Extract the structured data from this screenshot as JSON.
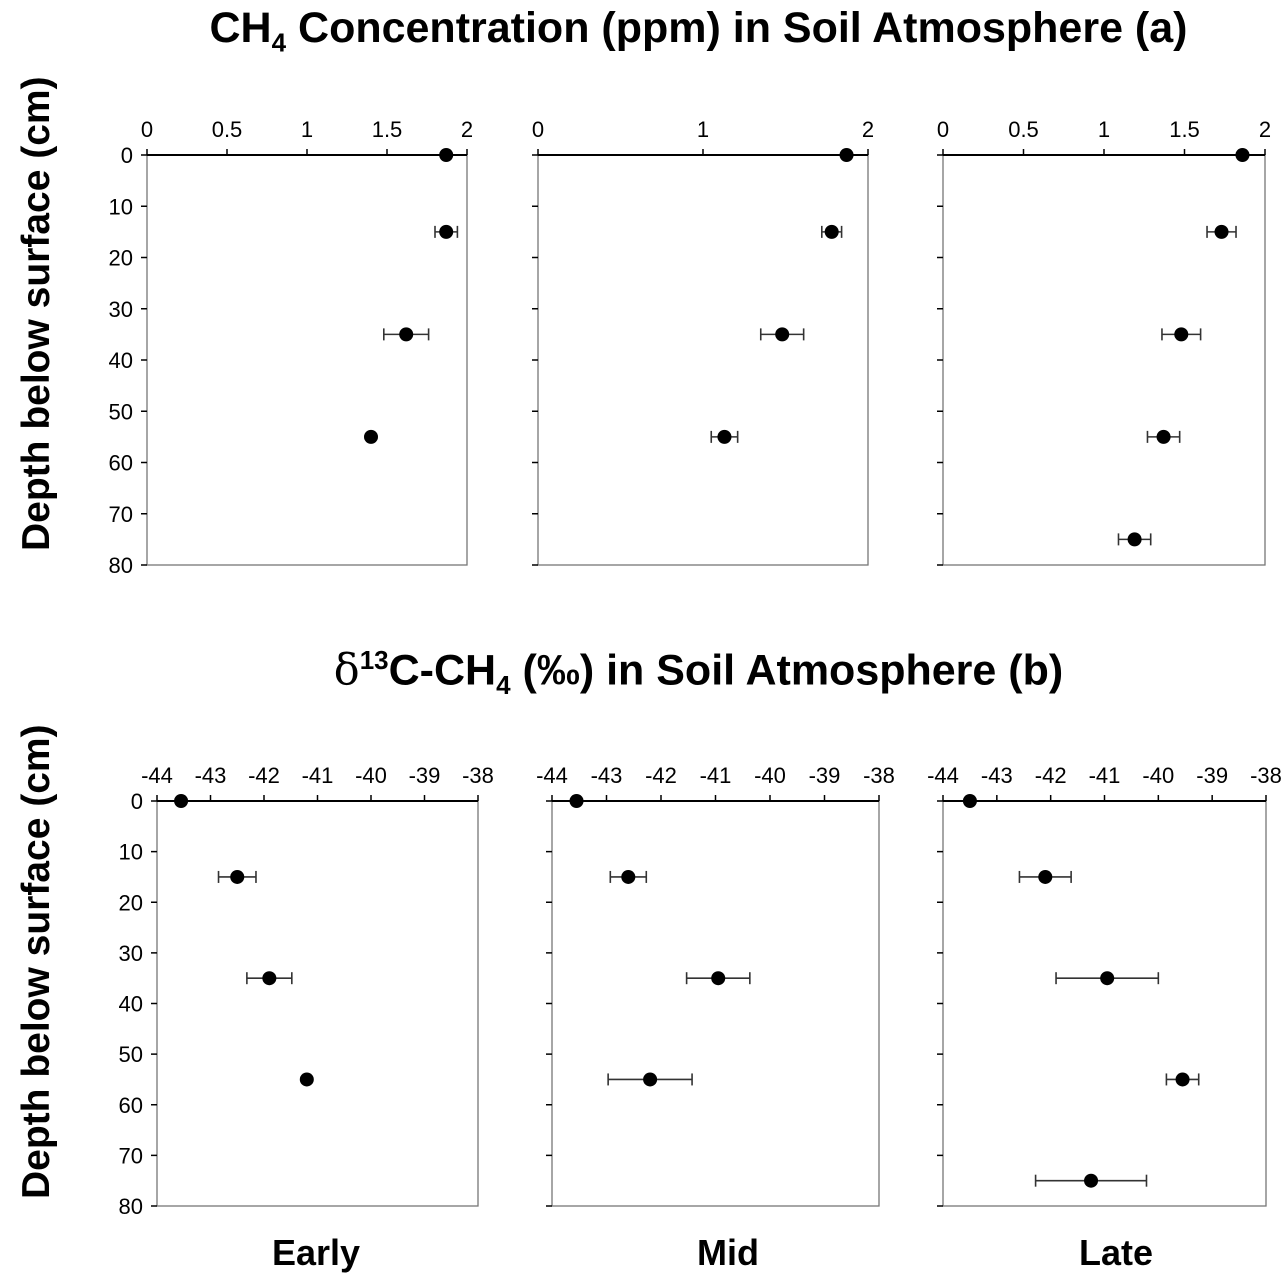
{
  "titles": {
    "a_main": "CH",
    "a_sub": "4",
    "a_rest": " Concentration (ppm) in Soil Atmosphere (a)",
    "b_delta": "δ",
    "b_sup": "13",
    "b_rest": "C-CH",
    "b_sub": "4",
    "b_tail": " (‰) in Soil Atmosphere (b)"
  },
  "ylabel": "Depth below surface (cm)",
  "periods": [
    "Early",
    "Mid",
    "Late"
  ],
  "chart_data": [
    {
      "type": "scatter",
      "panel": "a-early",
      "x_axis_position": "top",
      "xlim": [
        0,
        2
      ],
      "xticks": [
        "0",
        "0.5",
        "1",
        "1.5",
        "2"
      ],
      "xtick_values": [
        0,
        0.5,
        1,
        1.5,
        2
      ],
      "ylim": [
        0,
        80
      ],
      "yticks": [
        "0",
        "10",
        "20",
        "30",
        "40",
        "50",
        "60",
        "70",
        "80"
      ],
      "y_inverted": true,
      "points": [
        {
          "depth": 0,
          "value": 1.87,
          "err": 0
        },
        {
          "depth": 15,
          "value": 1.87,
          "err": 0.07
        },
        {
          "depth": 35,
          "value": 1.62,
          "err": 0.14
        },
        {
          "depth": 55,
          "value": 1.4,
          "err": 0
        }
      ]
    },
    {
      "type": "scatter",
      "panel": "a-mid",
      "x_axis_position": "top",
      "xlim": [
        0,
        2
      ],
      "xticks": [
        "0",
        "1",
        "2"
      ],
      "xtick_values": [
        0,
        1,
        2
      ],
      "ylim": [
        0,
        80
      ],
      "y_inverted": true,
      "points": [
        {
          "depth": 0,
          "value": 1.87,
          "err": 0
        },
        {
          "depth": 15,
          "value": 1.78,
          "err": 0.06
        },
        {
          "depth": 35,
          "value": 1.48,
          "err": 0.13
        },
        {
          "depth": 55,
          "value": 1.13,
          "err": 0.08
        }
      ]
    },
    {
      "type": "scatter",
      "panel": "a-late",
      "x_axis_position": "top",
      "xlim": [
        0,
        2
      ],
      "xticks": [
        "0",
        "0.5",
        "1",
        "1.5",
        "2"
      ],
      "xtick_values": [
        0,
        0.5,
        1,
        1.5,
        2
      ],
      "ylim": [
        0,
        80
      ],
      "y_inverted": true,
      "points": [
        {
          "depth": 0,
          "value": 1.86,
          "err": 0
        },
        {
          "depth": 15,
          "value": 1.73,
          "err": 0.09
        },
        {
          "depth": 35,
          "value": 1.48,
          "err": 0.12
        },
        {
          "depth": 55,
          "value": 1.37,
          "err": 0.1
        },
        {
          "depth": 75,
          "value": 1.19,
          "err": 0.1
        }
      ]
    },
    {
      "type": "scatter",
      "panel": "b-early",
      "x_axis_position": "top",
      "xlim": [
        -44,
        -38
      ],
      "xticks": [
        "-44",
        "-43",
        "-42",
        "-41",
        "-40",
        "-39",
        "-38"
      ],
      "xtick_values": [
        -44,
        -43,
        -42,
        -41,
        -40,
        -39,
        -38
      ],
      "ylim": [
        0,
        80
      ],
      "y_inverted": true,
      "points": [
        {
          "depth": 0,
          "value": -43.55,
          "err": 0
        },
        {
          "depth": 15,
          "value": -42.5,
          "err": 0.35
        },
        {
          "depth": 35,
          "value": -41.9,
          "err": 0.42
        },
        {
          "depth": 55,
          "value": -41.2,
          "err": 0
        }
      ]
    },
    {
      "type": "scatter",
      "panel": "b-mid",
      "x_axis_position": "top",
      "xlim": [
        -44,
        -38
      ],
      "xticks": [
        "-44",
        "-43",
        "-42",
        "-41",
        "-40",
        "-39",
        "-38"
      ],
      "xtick_values": [
        -44,
        -43,
        -42,
        -41,
        -40,
        -39,
        -38
      ],
      "ylim": [
        0,
        80
      ],
      "y_inverted": true,
      "points": [
        {
          "depth": 0,
          "value": -43.55,
          "err": 0
        },
        {
          "depth": 15,
          "value": -42.6,
          "err": 0.33
        },
        {
          "depth": 35,
          "value": -40.95,
          "err": 0.58
        },
        {
          "depth": 55,
          "value": -42.2,
          "err": 0.77
        }
      ]
    },
    {
      "type": "scatter",
      "panel": "b-late",
      "x_axis_position": "top",
      "xlim": [
        -44,
        -38
      ],
      "xticks": [
        "-44",
        "-43",
        "-42",
        "-41",
        "-40",
        "-39",
        "-38"
      ],
      "xtick_values": [
        -44,
        -43,
        -42,
        -41,
        -40,
        -39,
        -38
      ],
      "ylim": [
        0,
        80
      ],
      "y_inverted": true,
      "points": [
        {
          "depth": 0,
          "value": -43.5,
          "err": 0
        },
        {
          "depth": 15,
          "value": -42.1,
          "err": 0.48
        },
        {
          "depth": 35,
          "value": -40.95,
          "err": 0.95
        },
        {
          "depth": 55,
          "value": -39.55,
          "err": 0.3
        },
        {
          "depth": 75,
          "value": -41.25,
          "err": 1.03
        }
      ]
    }
  ]
}
